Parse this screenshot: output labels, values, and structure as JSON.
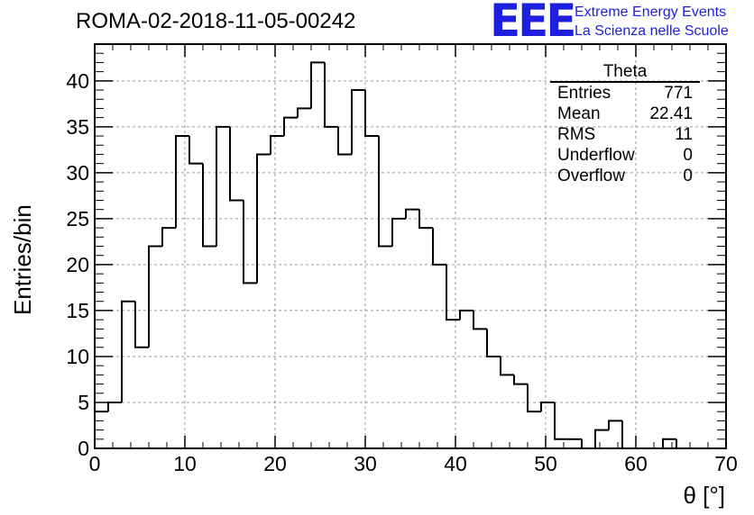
{
  "title": "ROMA-02-2018-11-05-00242",
  "logo": {
    "mark": "EEE",
    "line1": "Extreme Energy Events",
    "line2": "La Scienza nelle Scuole",
    "color": "#1f1fe0"
  },
  "stats": {
    "name": "Theta",
    "rows": [
      {
        "label": "Entries",
        "value": "771"
      },
      {
        "label": "Mean",
        "value": "22.41"
      },
      {
        "label": "RMS",
        "value": "11"
      },
      {
        "label": "Underflow",
        "value": "0"
      },
      {
        "label": "Overflow",
        "value": "0"
      }
    ]
  },
  "chart_data": {
    "type": "bar",
    "title": "ROMA-02-2018-11-05-00242",
    "xlabel": "θ [°]",
    "ylabel": "Entries/bin",
    "xlim": [
      0,
      70
    ],
    "ylim": [
      0,
      44
    ],
    "grid": true,
    "bin_width": 1.5,
    "x_ticks": [
      "0",
      "10",
      "20",
      "30",
      "40",
      "50",
      "60",
      "70"
    ],
    "y_ticks": [
      "0",
      "5",
      "10",
      "15",
      "20",
      "25",
      "30",
      "35",
      "40"
    ],
    "bin_edges": [
      0,
      1.5,
      3,
      4.5,
      6,
      7.5,
      9,
      10.5,
      12,
      13.5,
      15,
      16.5,
      18,
      19.5,
      21,
      22.5,
      24,
      25.5,
      27,
      28.5,
      30,
      31.5,
      33,
      34.5,
      36,
      37.5,
      39,
      40.5,
      42,
      43.5,
      45,
      46.5,
      48,
      49.5,
      51,
      52.5,
      54,
      55.5,
      57,
      58.5,
      60,
      61.5,
      63,
      64.5,
      66,
      67.5,
      69
    ],
    "values": [
      4,
      5,
      16,
      11,
      22,
      24,
      34,
      31,
      22,
      35,
      27,
      18,
      32,
      34,
      36,
      37,
      42,
      35,
      32,
      39,
      34,
      22,
      25,
      26,
      24,
      20,
      14,
      15,
      13,
      10,
      8,
      7,
      4,
      5,
      1,
      1,
      0,
      2,
      3,
      0,
      0,
      0,
      1,
      0,
      0,
      0
    ],
    "line_color": "#000000"
  }
}
